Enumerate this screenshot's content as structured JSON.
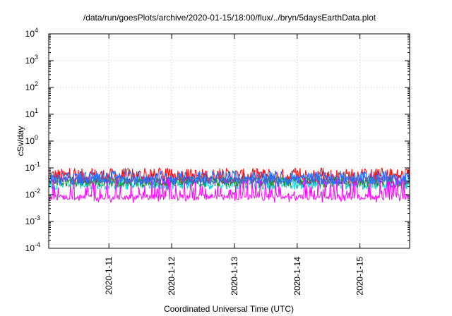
{
  "chart_data": {
    "type": "line",
    "title": "/data/run/goesPlots/archive/2020-01-15/18:00/flux/../bryn/5daysEarthData.plot",
    "xlabel": "Coordinated Universal Time (UTC)",
    "ylabel": "cSv/day",
    "x_ticks": [
      "2020-1-11",
      "2020-1-12",
      "2020-1-13",
      "2020-1-14",
      "2020-1-15"
    ],
    "xlim": [
      "2020-01-10 01:00",
      "2020-01-15 19:00"
    ],
    "y_scale": "log",
    "ylim": [
      0.0001,
      10000
    ],
    "y_ticks": [
      {
        "base": "10",
        "exp": "-4"
      },
      {
        "base": "10",
        "exp": "-3"
      },
      {
        "base": "10",
        "exp": "-2"
      },
      {
        "base": "10",
        "exp": "-1"
      },
      {
        "base": "10",
        "exp": "0"
      },
      {
        "base": "10",
        "exp": "1"
      },
      {
        "base": "10",
        "exp": "2"
      },
      {
        "base": "10",
        "exp": "3"
      },
      {
        "base": "10",
        "exp": "4"
      }
    ],
    "grid": true,
    "series": [
      {
        "color": "#ff0000",
        "level": 0.05,
        "min": 0.02,
        "max": 0.1
      },
      {
        "color": "#00d0d0",
        "level": 0.025,
        "min": 0.012,
        "max": 0.04
      },
      {
        "color": "#228b22",
        "level": 0.03,
        "min": 0.015,
        "max": 0.045
      },
      {
        "color": "#7b3fbf",
        "level": 0.035,
        "min": 0.02,
        "max": 0.05
      },
      {
        "color": "#1e73ff",
        "level": 0.04,
        "min": 0.02,
        "max": 0.08
      },
      {
        "color": "#ff00ff",
        "level": 0.008,
        "min": 0.005,
        "max": 0.04
      }
    ]
  }
}
